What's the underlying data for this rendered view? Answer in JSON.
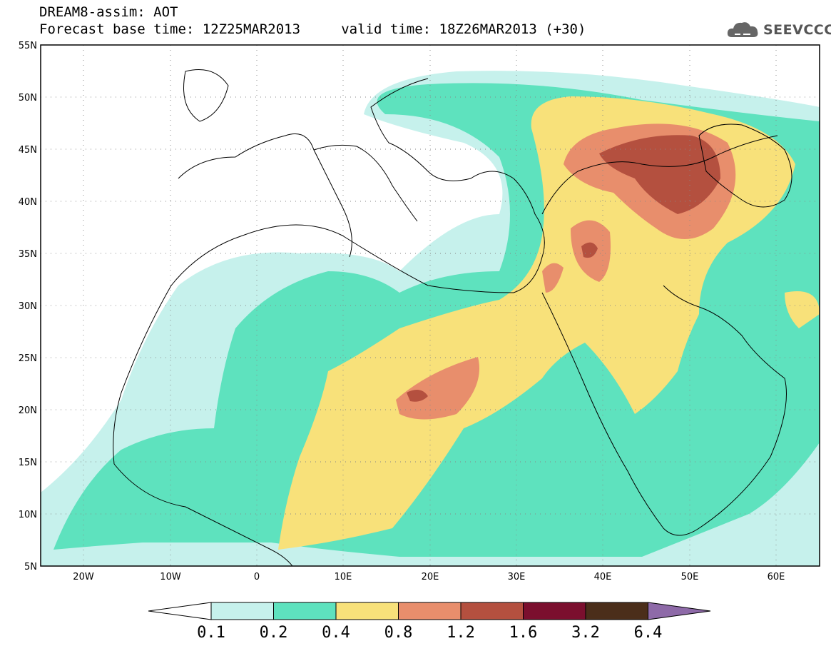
{
  "title": {
    "line1": "DREAM8-assim: AOT",
    "line2": "Forecast base time: 12Z25MAR2013     valid time: 18Z26MAR2013 (+30)"
  },
  "logo": {
    "text": "SEEVCCC",
    "icon": "cloud-icon",
    "color": "#555555"
  },
  "map": {
    "lat_labels": [
      "55N",
      "50N",
      "45N",
      "40N",
      "35N",
      "30N",
      "25N",
      "20N",
      "15N",
      "10N",
      "5N"
    ],
    "lon_labels": [
      "20W",
      "10W",
      "0",
      "10E",
      "20E",
      "30E",
      "40E",
      "50E",
      "60E"
    ],
    "lat_range": [
      5,
      55
    ],
    "lon_range": [
      -25,
      65
    ],
    "grid": "dotted"
  },
  "colorbar": {
    "levels": [
      "0.1",
      "0.2",
      "0.4",
      "0.8",
      "1.2",
      "1.6",
      "3.2",
      "6.4"
    ],
    "colors": [
      "#ffffff",
      "#c6f1ec",
      "#5ee2be",
      "#f8e17a",
      "#e88e6c",
      "#b4503f",
      "#7b0f2e",
      "#4b2e1a",
      "#8e6aa8"
    ]
  }
}
